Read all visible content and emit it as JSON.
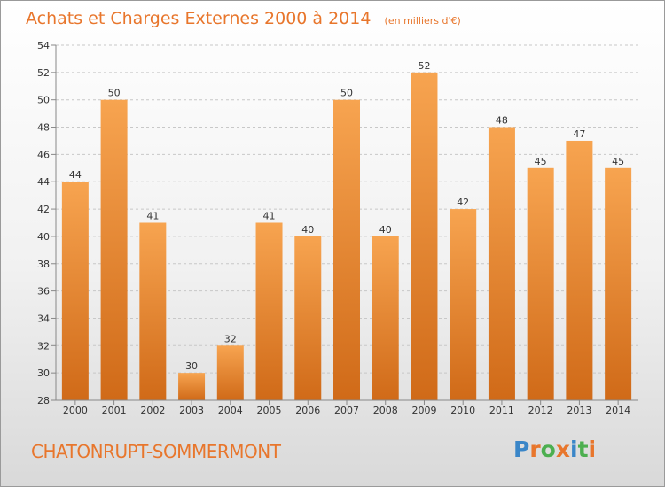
{
  "chart_data": {
    "type": "bar",
    "title": "Achats et Charges Externes 2000 à 2014",
    "subtitle": "(en milliers d'€)",
    "categories": [
      "2000",
      "2001",
      "2002",
      "2003",
      "2004",
      "2005",
      "2006",
      "2007",
      "2008",
      "2009",
      "2010",
      "2011",
      "2012",
      "2013",
      "2014"
    ],
    "values": [
      44,
      50,
      41,
      30,
      32,
      41,
      40,
      50,
      40,
      52,
      42,
      48,
      45,
      47,
      45
    ],
    "ylim": [
      28,
      54
    ],
    "yticks": [
      28,
      30,
      32,
      34,
      36,
      38,
      40,
      42,
      44,
      46,
      48,
      50,
      52,
      54
    ],
    "xlabel": "",
    "ylabel": "",
    "grid": true,
    "bar_color_top": "#f7a450",
    "bar_color_bottom": "#d06a18"
  },
  "footer": {
    "place_name": "CHATONRUPT-SOMMERMONT",
    "logo_text": "Proxiti",
    "logo_colors": [
      "#3a86c8",
      "#e8762c",
      "#4caf50",
      "#e8762c",
      "#3a86c8",
      "#4caf50",
      "#e8762c"
    ]
  }
}
